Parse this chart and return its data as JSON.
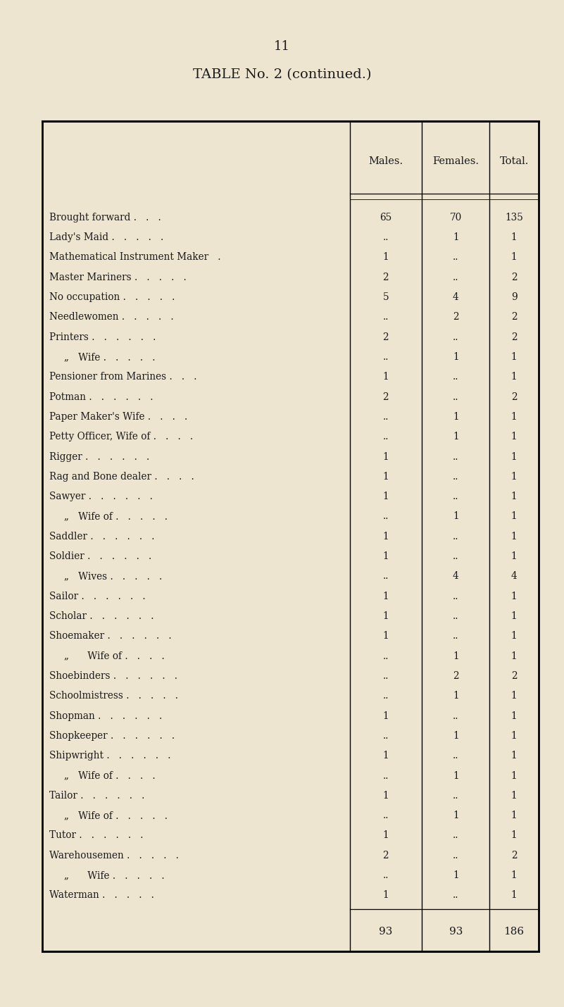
{
  "page_number": "11",
  "title": "TABLE No. 2 (continued.)",
  "bg_color": "#ede5d0",
  "text_color": "#1a1a1a",
  "col_headers": [
    "Males.",
    "Females.",
    "Total."
  ],
  "rows": [
    {
      "label": "Brought forward .   .   .",
      "indent": 0,
      "males": "65",
      "females": "70",
      "total": "135"
    },
    {
      "label": "Lady's Maid .   .   .   .   .",
      "indent": 0,
      "males": "..",
      "females": "1",
      "total": "1"
    },
    {
      "label": "Mathematical Instrument Maker   .",
      "indent": 0,
      "males": "1",
      "females": "..",
      "total": "1"
    },
    {
      "label": "Master Mariners .   .   .   .   .",
      "indent": 0,
      "males": "2",
      "females": "..",
      "total": "2"
    },
    {
      "label": "No occupation .   .   .   .   .",
      "indent": 0,
      "males": "5",
      "females": "4",
      "total": "9"
    },
    {
      "label": "Needlewomen .   .   .   .   .",
      "indent": 0,
      "males": "..",
      "females": "2",
      "total": "2"
    },
    {
      "label": "Printers .   .   .   .   .   .",
      "indent": 0,
      "males": "2",
      "females": "..",
      "total": "2"
    },
    {
      "label": "„   Wife .   .   .   .   .",
      "indent": 1,
      "males": "..",
      "females": "1",
      "total": "1"
    },
    {
      "label": "Pensioner from Marines .   .   .",
      "indent": 0,
      "males": "1",
      "females": "..",
      "total": "1"
    },
    {
      "label": "Potman .   .   .   .   .   .",
      "indent": 0,
      "males": "2",
      "females": "..",
      "total": "2"
    },
    {
      "label": "Paper Maker's Wife .   .   .   .",
      "indent": 0,
      "males": "..",
      "females": "1",
      "total": "1"
    },
    {
      "label": "Petty Officer, Wife of .   .   .   .",
      "indent": 0,
      "males": "..",
      "females": "1",
      "total": "1"
    },
    {
      "label": "Rigger .   .   .   .   .   .",
      "indent": 0,
      "males": "1",
      "females": "..",
      "total": "1"
    },
    {
      "label": "Rag and Bone dealer .   .   .   .",
      "indent": 0,
      "males": "1",
      "females": "..",
      "total": "1"
    },
    {
      "label": "Sawyer .   .   .   .   .   .",
      "indent": 0,
      "males": "1",
      "females": "..",
      "total": "1"
    },
    {
      "label": "„   Wife of .   .   .   .   .",
      "indent": 1,
      "males": "..",
      "females": "1",
      "total": "1"
    },
    {
      "label": "Saddler .   .   .   .   .   .",
      "indent": 0,
      "males": "1",
      "females": "..",
      "total": "1"
    },
    {
      "label": "Soldier .   .   .   .   .   .",
      "indent": 0,
      "males": "1",
      "females": "..",
      "total": "1"
    },
    {
      "label": "„   Wives .   .   .   .   .",
      "indent": 1,
      "males": "..",
      "females": "4",
      "total": "4"
    },
    {
      "label": "Sailor .   .   .   .   .   .",
      "indent": 0,
      "males": "1",
      "females": "..",
      "total": "1"
    },
    {
      "label": "Scholar .   .   .   .   .   .",
      "indent": 0,
      "males": "1",
      "females": "..",
      "total": "1"
    },
    {
      "label": "Shoemaker .   .   .   .   .   .",
      "indent": 0,
      "males": "1",
      "females": "..",
      "total": "1"
    },
    {
      "label": "„      Wife of .   .   .   .",
      "indent": 1,
      "males": "..",
      "females": "1",
      "total": "1"
    },
    {
      "label": "Shoebinders .   .   .   .   .   .",
      "indent": 0,
      "males": "..",
      "females": "2",
      "total": "2"
    },
    {
      "label": "Schoolmistress .   .   .   .   .",
      "indent": 0,
      "males": "..",
      "females": "1",
      "total": "1"
    },
    {
      "label": "Shopman .   .   .   .   .   .",
      "indent": 0,
      "males": "1",
      "females": "..",
      "total": "1"
    },
    {
      "label": "Shopkeeper .   .   .   .   .   .",
      "indent": 0,
      "males": "..",
      "females": "1",
      "total": "1"
    },
    {
      "label": "Shipwright .   .   .   .   .   .",
      "indent": 0,
      "males": "1",
      "females": "..",
      "total": "1"
    },
    {
      "label": "„   Wife of .   .   .   .",
      "indent": 1,
      "males": "..",
      "females": "1",
      "total": "1"
    },
    {
      "label": "Tailor .   .   .   .   .   .",
      "indent": 0,
      "males": "1",
      "females": "..",
      "total": "1"
    },
    {
      "label": "„   Wife of .   .   .   .   .",
      "indent": 1,
      "males": "..",
      "females": "1",
      "total": "1"
    },
    {
      "label": "Tutor .   .   .   .   .   .",
      "indent": 0,
      "males": "1",
      "females": "..",
      "total": "1"
    },
    {
      "label": "Warehousemen .   .   .   .   .",
      "indent": 0,
      "males": "2",
      "females": "..",
      "total": "2"
    },
    {
      "label": "„      Wife .   .   .   .   .",
      "indent": 1,
      "males": "..",
      "females": "1",
      "total": "1"
    },
    {
      "label": "Waterman .   .   .   .   .",
      "indent": 0,
      "males": "1",
      "females": "..",
      "total": "1"
    }
  ],
  "totals": {
    "males": "93",
    "females": "93",
    "total": "186"
  },
  "font_family": "DejaVu Serif",
  "font_size_title": 14,
  "font_size_page": 13,
  "font_size_header": 10.5,
  "font_size_row": 9.8,
  "font_size_total": 11
}
